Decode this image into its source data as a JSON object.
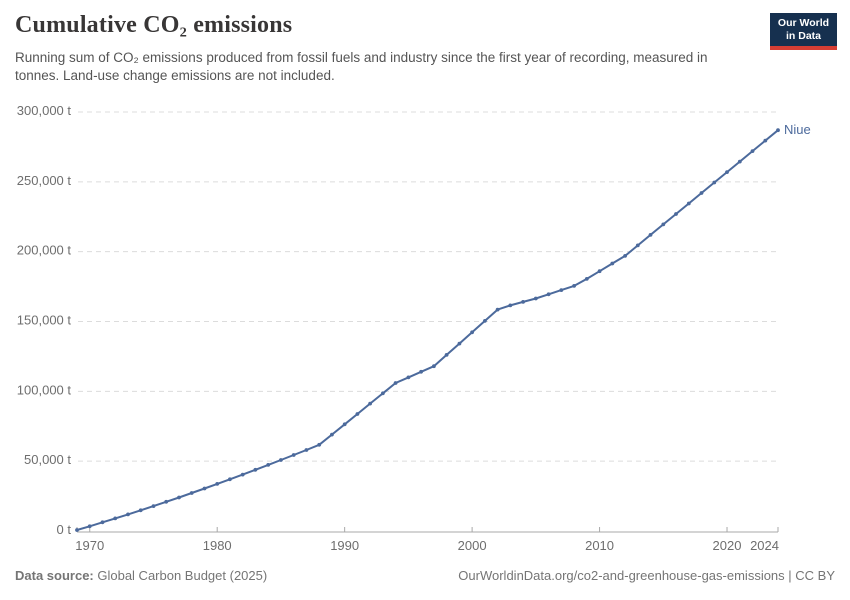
{
  "header": {
    "title": "Cumulative CO₂ emissions",
    "subtitle": "Running sum of CO₂ emissions produced from fossil fuels and industry since the first year of recording, measured in tonnes. Land-use change emissions are not included.",
    "logo": {
      "line1": "Our World",
      "line2": "in Data"
    }
  },
  "chart_data": {
    "type": "line",
    "title": "Cumulative CO₂ emissions",
    "unit": "t",
    "series_name": "Niue",
    "line_color": "#4c6a9c",
    "grid": "dashed-horizontal",
    "legend_position": "end-of-line-label",
    "xlim": [
      1969,
      2024
    ],
    "ylim": [
      0,
      300000
    ],
    "xticks": [
      1970,
      1980,
      1990,
      2000,
      2010,
      2020,
      2024
    ],
    "yticks": [
      {
        "value": 0,
        "label": "0 t"
      },
      {
        "value": 50000,
        "label": "50,000 t"
      },
      {
        "value": 100000,
        "label": "100,000 t"
      },
      {
        "value": 150000,
        "label": "150,000 t"
      },
      {
        "value": 200000,
        "label": "200,000 t"
      },
      {
        "value": 250000,
        "label": "250,000 t"
      },
      {
        "value": 300000,
        "label": "300,000 t"
      }
    ],
    "x": [
      1969,
      1970,
      1971,
      1972,
      1973,
      1974,
      1975,
      1976,
      1977,
      1978,
      1979,
      1980,
      1981,
      1982,
      1983,
      1984,
      1985,
      1986,
      1987,
      1988,
      1989,
      1990,
      1991,
      1992,
      1993,
      1994,
      1995,
      1996,
      1997,
      1998,
      1999,
      2000,
      2001,
      2002,
      2003,
      2004,
      2005,
      2006,
      2007,
      2008,
      2009,
      2010,
      2011,
      2012,
      2013,
      2014,
      2015,
      2016,
      2017,
      2018,
      2019,
      2020,
      2021,
      2022,
      2023,
      2024
    ],
    "values": [
      700,
      3400,
      6200,
      9000,
      11900,
      14800,
      17800,
      20900,
      24000,
      27200,
      30400,
      33700,
      37000,
      40400,
      43800,
      47300,
      50800,
      54400,
      58000,
      61700,
      69000,
      76400,
      83800,
      91200,
      98600,
      106000,
      110000,
      114000,
      118000,
      126100,
      134200,
      142300,
      150400,
      158500,
      161500,
      164000,
      166500,
      169500,
      172500,
      175500,
      180500,
      186000,
      191500,
      197000,
      204500,
      212000,
      219500,
      227000,
      234500,
      242000,
      249500,
      257000,
      264500,
      272000,
      279500,
      287000
    ]
  },
  "footer": {
    "source_label": "Data source:",
    "source_value": " Global Carbon Budget (2025)",
    "credit": "OurWorldinData.org/co2-and-greenhouse-gas-emissions | CC BY"
  },
  "colors": {
    "line": "#4c6a9c",
    "gridline": "#dcdcdc",
    "axis": "#a8a8a8",
    "tick_text": "#6e6e6e",
    "title_text": "#383636",
    "subtitle_text": "#555555",
    "footer_text": "#757575",
    "logo_bg": "#16304f",
    "logo_accent": "#d63e34",
    "background": "#ffffff"
  }
}
